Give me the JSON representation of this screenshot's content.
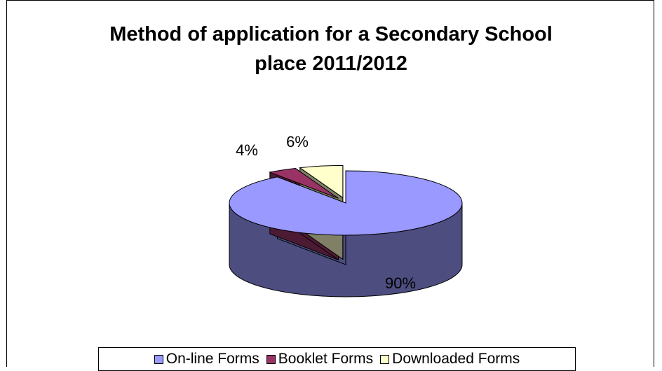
{
  "chart_data": {
    "type": "pie",
    "title_lines": [
      "Method of application for a Secondary School",
      "place 2011/2012"
    ],
    "categories": [
      "On-line Forms",
      "Booklet Forms",
      "Downloaded Forms"
    ],
    "values": [
      90,
      4,
      6
    ],
    "data_labels": [
      "90%",
      "4%",
      "6%"
    ],
    "colors": {
      "On-line Forms": {
        "top": "#9999ff",
        "side": "#4d4d80"
      },
      "Booklet Forms": {
        "top": "#993366",
        "side": "#4d1a33"
      },
      "Downloaded Forms": {
        "top": "#ffffcc",
        "side": "#808066"
      }
    },
    "legend_position": "bottom",
    "exploded_slices": [
      "Booklet Forms",
      "Downloaded Forms"
    ]
  }
}
